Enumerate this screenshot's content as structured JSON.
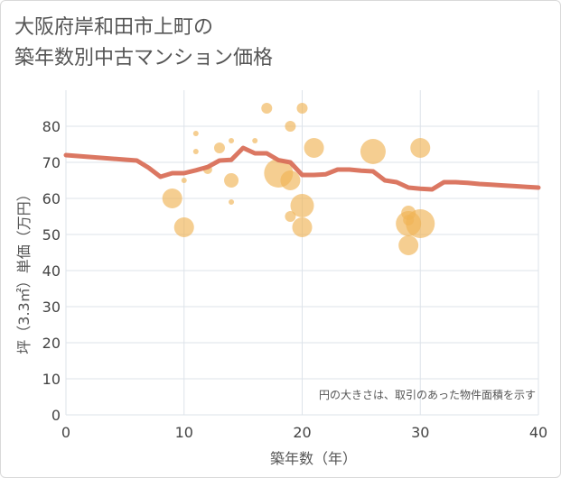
{
  "title_line1": "大阪府岸和田市上町の",
  "title_line2": "築年数別中古マンション価格",
  "chart_data": {
    "type": "scatter",
    "title": "大阪府岸和田市上町の築年数別中古マンション価格",
    "xlabel": "築年数（年）",
    "ylabel": "坪（3.3㎡）単価（万円）",
    "xlim": [
      0,
      40
    ],
    "ylim": [
      0,
      90
    ],
    "x_ticks": [
      0,
      10,
      20,
      30,
      40
    ],
    "y_ticks": [
      0,
      10,
      20,
      30,
      40,
      50,
      60,
      70,
      80
    ],
    "grid": true,
    "annotation": "円の大きさは、取引のあった物件面積を示す",
    "colors": {
      "bubble": "#f0b456",
      "line": "#d9705a",
      "grid": "#dde3ea",
      "frame": "#d9d9d9"
    },
    "bubbles": [
      {
        "x": 9,
        "y": 60,
        "size": 11
      },
      {
        "x": 10,
        "y": 52,
        "size": 11
      },
      {
        "x": 10,
        "y": 65,
        "size": 3
      },
      {
        "x": 11,
        "y": 78,
        "size": 3
      },
      {
        "x": 11,
        "y": 73,
        "size": 3
      },
      {
        "x": 12,
        "y": 68,
        "size": 5
      },
      {
        "x": 13,
        "y": 74,
        "size": 6
      },
      {
        "x": 14,
        "y": 76,
        "size": 3
      },
      {
        "x": 14,
        "y": 65,
        "size": 8
      },
      {
        "x": 14,
        "y": 59,
        "size": 3
      },
      {
        "x": 16,
        "y": 76,
        "size": 3
      },
      {
        "x": 17,
        "y": 85,
        "size": 6
      },
      {
        "x": 18,
        "y": 67,
        "size": 16
      },
      {
        "x": 19,
        "y": 65,
        "size": 11
      },
      {
        "x": 19,
        "y": 80,
        "size": 6
      },
      {
        "x": 19,
        "y": 55,
        "size": 6
      },
      {
        "x": 20,
        "y": 85,
        "size": 6
      },
      {
        "x": 20,
        "y": 58,
        "size": 13
      },
      {
        "x": 20,
        "y": 52,
        "size": 11
      },
      {
        "x": 21,
        "y": 74,
        "size": 11
      },
      {
        "x": 26,
        "y": 73,
        "size": 14
      },
      {
        "x": 29,
        "y": 56,
        "size": 8
      },
      {
        "x": 29,
        "y": 54,
        "size": 6
      },
      {
        "x": 29,
        "y": 53,
        "size": 14
      },
      {
        "x": 29,
        "y": 47,
        "size": 11
      },
      {
        "x": 30,
        "y": 74,
        "size": 11
      },
      {
        "x": 30,
        "y": 53,
        "size": 16
      }
    ],
    "trend_line": {
      "x": [
        0,
        6,
        7,
        8,
        9,
        10,
        11,
        12,
        13,
        14,
        15,
        16,
        17,
        18,
        19,
        20,
        21,
        22,
        23,
        24,
        25,
        26,
        27,
        28,
        29,
        30,
        31,
        32,
        33,
        34,
        35,
        36,
        37,
        38,
        39,
        40
      ],
      "y": [
        72,
        70.5,
        68.5,
        66,
        67,
        67,
        67.8,
        68.7,
        70.5,
        70.7,
        74,
        72.5,
        72.5,
        70.6,
        70,
        66.5,
        66.5,
        66.7,
        68,
        68,
        67.7,
        67.5,
        65,
        64.5,
        63,
        62.7,
        62.5,
        64.5,
        64.5,
        64.3,
        64,
        63.8,
        63.6,
        63.4,
        63.2,
        63
      ]
    }
  }
}
